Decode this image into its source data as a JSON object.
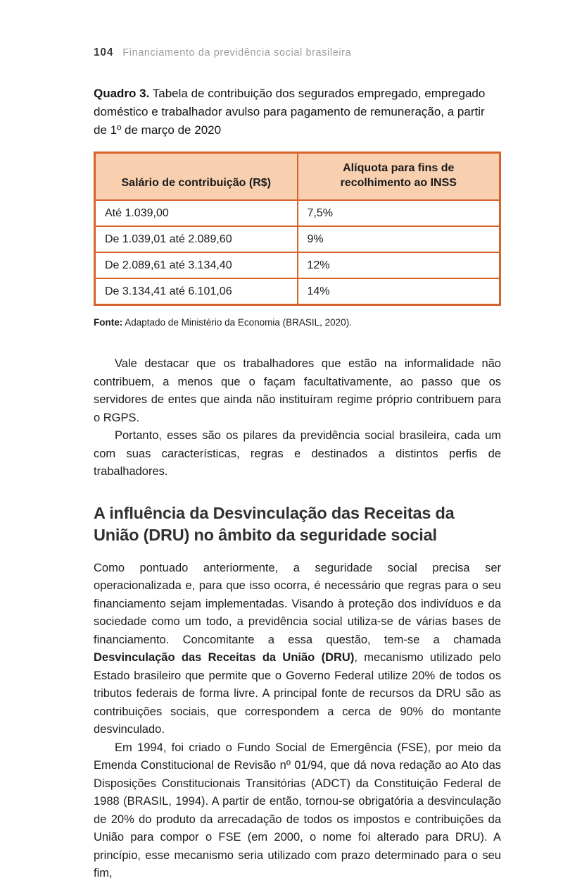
{
  "page": {
    "number": "104",
    "running_title": "Financiamento da previdência social brasileira"
  },
  "caption": {
    "label": "Quadro 3.",
    "text": " Tabela de contribuição dos segurados empregado, empregado doméstico e trabalhador avulso para pagamento de remuneração, a partir de 1º de março de 2020"
  },
  "table": {
    "headers": [
      "Salário de contribuição (R$)",
      "Alíquota para fins de recolhimento ao INSS"
    ],
    "rows": [
      [
        "Até 1.039,00",
        "7,5%"
      ],
      [
        "De 1.039,01 até 2.089,60",
        "9%"
      ],
      [
        "De 2.089,61 até 3.134,40",
        "12%"
      ],
      [
        "De 3.134,41 até 6.101,06",
        "14%"
      ]
    ]
  },
  "source": {
    "label": "Fonte:",
    "text": " Adaptado de Ministério da Economia (BRASIL, 2020)."
  },
  "paragraphs": {
    "p1": "Vale destacar que os trabalhadores que estão na informalidade não contribuem, a menos que o façam facultativamente, ao passo que os servidores de entes que ainda não instituíram regime próprio contribuem para o RGPS.",
    "p2": "Portanto, esses são os pilares da previdência social brasileira, cada um com suas características, regras e destinados a distintos perfis de trabalhadores."
  },
  "section": {
    "heading": "A influência da Desvinculação das Receitas da União (DRU) no âmbito da seguridade social"
  },
  "paragraphs2": {
    "p3_pre": "Como pontuado anteriormente, a seguridade social precisa ser operacionalizada e, para que isso ocorra, é necessário que regras para o seu financiamento sejam implementadas. Visando à proteção dos indivíduos e da sociedade como um todo, a previdência social utiliza-se de várias bases de financiamento. Concomitante a essa questão, tem-se a chamada ",
    "p3_bold": "Desvinculação das Receitas da União (DRU)",
    "p3_post": ", mecanismo utilizado pelo Estado brasileiro que permite que o Governo Federal utilize 20% de todos os tributos federais de forma livre. A principal fonte de recursos da DRU são as contribuições sociais, que correspondem a cerca de 90% do montante desvinculado.",
    "p4": "Em 1994, foi criado o Fundo Social de Emergência (FSE), por meio da Emenda Constitucional de Revisão nº 01/94, que dá nova redação ao Ato das Disposições Constitucionais Transitórias (ADCT) da Constituição Federal de 1988 (BRASIL, 1994). A partir de então, tornou-se obrigatória a desvinculação de 20% do produto da arrecadação de todos os impostos e contribuições da União para compor o FSE (em 2000, o nome foi alterado para DRU). A princípio, esse mecanismo seria utilizado com prazo determinado para o seu fim,"
  },
  "colors": {
    "table_border": "#d5632b",
    "table_header_bg": "#f8d0af",
    "running_title_gray": "#9c9c9c",
    "body_text": "#1c1c1c"
  }
}
